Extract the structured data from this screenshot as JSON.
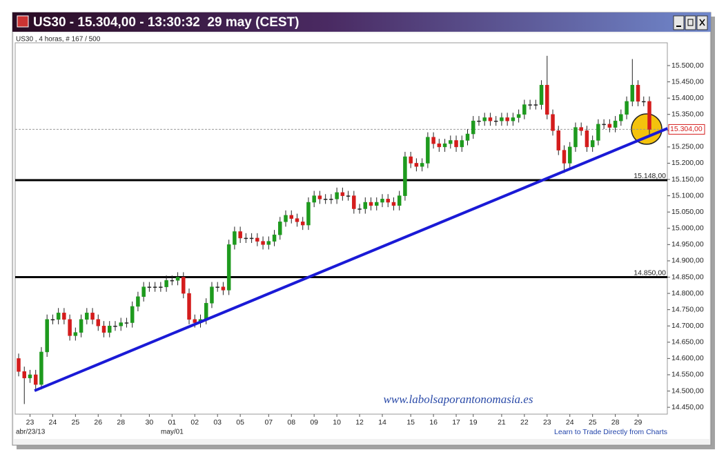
{
  "window_title": "US30 - 15.304,00 - 13:30:32  29 may (CEST)",
  "subtitle": "US30 , 4 horas, # 167 / 500",
  "date_row_labels": [
    "abr/23/13",
    "may/01"
  ],
  "watermark": "www.labolsaporantonomasia.es",
  "footer_link": "Learn to Trade Directly from Charts",
  "chart_data": {
    "type": "candlestick",
    "categories": [
      null,
      null,
      "23",
      null,
      null,
      null,
      "24",
      null,
      null,
      null,
      "25",
      null,
      null,
      null,
      "26",
      null,
      null,
      null,
      "28",
      null,
      null,
      null,
      null,
      "30",
      null,
      null,
      null,
      "01",
      null,
      null,
      null,
      "02",
      null,
      null,
      null,
      "03",
      null,
      null,
      null,
      "05",
      null,
      null,
      null,
      null,
      "07",
      null,
      null,
      null,
      "08",
      null,
      null,
      null,
      "09",
      null,
      null,
      null,
      "10",
      null,
      null,
      null,
      "12",
      null,
      null,
      null,
      "14",
      null,
      null,
      null,
      null,
      "15",
      null,
      null,
      null,
      "16",
      null,
      null,
      null,
      "17",
      null,
      null,
      "19",
      null,
      null,
      null,
      null,
      "21",
      null,
      null,
      null,
      "22",
      null,
      null,
      null,
      "23",
      null,
      null,
      null,
      "24",
      null,
      null,
      null,
      "25",
      null,
      null,
      null,
      "28",
      null,
      null,
      null,
      "29",
      null,
      null
    ],
    "open": [
      14600,
      14560,
      14540,
      14550,
      14520,
      14620,
      14720,
      14720,
      14740,
      14720,
      14670,
      14680,
      14720,
      14740,
      14720,
      14700,
      14680,
      14700,
      14700,
      14710,
      14710,
      14760,
      14790,
      14820,
      14820,
      14820,
      14820,
      14840,
      14840,
      14850,
      14800,
      14720,
      14710,
      14720,
      14770,
      14820,
      14820,
      14810,
      14950,
      14990,
      14970,
      14970,
      14970,
      14960,
      14950,
      14960,
      14980,
      15020,
      15040,
      15030,
      15020,
      15010,
      15080,
      15100,
      15090,
      15090,
      15090,
      15110,
      15100,
      15100,
      15060,
      15060,
      15080,
      15070,
      15080,
      15090,
      15080,
      15070,
      15100,
      15220,
      15200,
      15190,
      15200,
      15280,
      15260,
      15250,
      15260,
      15270,
      15250,
      15270,
      15290,
      15330,
      15330,
      15340,
      15330,
      15330,
      15340,
      15330,
      15340,
      15350,
      15380,
      15380,
      15380,
      15440,
      15350,
      15300,
      15240,
      15200,
      15250,
      15310,
      15300,
      15250,
      15270,
      15320,
      15320,
      15310,
      15330,
      15350,
      15390,
      15440,
      15390,
      15390
    ],
    "high": [
      14615,
      14575,
      14565,
      14565,
      14635,
      14735,
      14735,
      14755,
      14755,
      14735,
      14695,
      14735,
      14755,
      14755,
      14735,
      14715,
      14715,
      14715,
      14725,
      14725,
      14775,
      14805,
      14835,
      14835,
      14835,
      14835,
      14855,
      14855,
      14865,
      14865,
      14815,
      14735,
      14735,
      14785,
      14835,
      14835,
      14835,
      14965,
      15005,
      15005,
      14985,
      14985,
      14985,
      14975,
      14975,
      14995,
      15035,
      15055,
      15055,
      15045,
      15035,
      15095,
      15115,
      15115,
      15105,
      15105,
      15125,
      15125,
      15115,
      15115,
      15075,
      15095,
      15095,
      15095,
      15105,
      15105,
      15095,
      15115,
      15235,
      15235,
      15215,
      15215,
      15295,
      15295,
      15275,
      15275,
      15285,
      15285,
      15285,
      15305,
      15345,
      15345,
      15355,
      15355,
      15345,
      15355,
      15355,
      15355,
      15365,
      15395,
      15395,
      15395,
      15455,
      15530,
      15365,
      15315,
      15255,
      15265,
      15325,
      15325,
      15315,
      15285,
      15335,
      15335,
      15335,
      15345,
      15365,
      15405,
      15520,
      15455,
      15405,
      15405
    ],
    "low": [
      14545,
      14460,
      14525,
      14505,
      14505,
      14605,
      14705,
      14705,
      14705,
      14655,
      14655,
      14665,
      14705,
      14705,
      14685,
      14665,
      14665,
      14685,
      14685,
      14695,
      14695,
      14745,
      14775,
      14805,
      14805,
      14805,
      14805,
      14825,
      14825,
      14785,
      14705,
      14695,
      14695,
      14705,
      14755,
      14805,
      14795,
      14795,
      14935,
      14955,
      14955,
      14955,
      14945,
      14935,
      14935,
      14945,
      14965,
      15005,
      15015,
      15005,
      14995,
      14995,
      15065,
      15075,
      15075,
      15075,
      15075,
      15085,
      15085,
      15045,
      15045,
      15045,
      15055,
      15055,
      15065,
      15065,
      15055,
      15055,
      15085,
      15185,
      15175,
      15175,
      15185,
      15245,
      15235,
      15235,
      15245,
      15235,
      15235,
      15255,
      15275,
      15315,
      15315,
      15315,
      15315,
      15315,
      15315,
      15315,
      15325,
      15335,
      15365,
      15365,
      15365,
      15335,
      15285,
      15225,
      15170,
      15185,
      15235,
      15285,
      15235,
      15235,
      15255,
      15305,
      15295,
      15295,
      15315,
      15335,
      15375,
      15375,
      15375,
      15289
    ],
    "close": [
      14560,
      14540,
      14550,
      14520,
      14620,
      14720,
      14720,
      14740,
      14720,
      14670,
      14680,
      14720,
      14740,
      14720,
      14700,
      14680,
      14700,
      14700,
      14710,
      14710,
      14760,
      14790,
      14820,
      14820,
      14820,
      14820,
      14840,
      14840,
      14850,
      14800,
      14720,
      14710,
      14720,
      14770,
      14820,
      14820,
      14810,
      14950,
      14990,
      14970,
      14970,
      14970,
      14960,
      14950,
      14960,
      14980,
      15020,
      15040,
      15030,
      15020,
      15010,
      15080,
      15100,
      15090,
      15090,
      15090,
      15110,
      15100,
      15100,
      15060,
      15060,
      15080,
      15070,
      15080,
      15090,
      15080,
      15070,
      15100,
      15220,
      15200,
      15190,
      15200,
      15280,
      15260,
      15250,
      15260,
      15270,
      15250,
      15270,
      15290,
      15330,
      15330,
      15340,
      15330,
      15330,
      15340,
      15330,
      15340,
      15350,
      15380,
      15380,
      15380,
      15440,
      15350,
      15300,
      15240,
      15200,
      15250,
      15310,
      15300,
      15250,
      15270,
      15320,
      15320,
      15310,
      15330,
      15350,
      15390,
      15440,
      15390,
      15390,
      15304
    ],
    "up_color": "#1e9a1e",
    "down_color": "#d41c1c",
    "ylim": [
      14429,
      15570
    ],
    "yticks": [
      {
        "value": 14450,
        "label": "14.450,00"
      },
      {
        "value": 14500,
        "label": "14.500,00"
      },
      {
        "value": 14550,
        "label": "14.550,00"
      },
      {
        "value": 14600,
        "label": "14.600,00"
      },
      {
        "value": 14650,
        "label": "14.650,00"
      },
      {
        "value": 14700,
        "label": "14.700,00"
      },
      {
        "value": 14750,
        "label": "14.750,00"
      },
      {
        "value": 14800,
        "label": "14.800,00"
      },
      {
        "value": 14850,
        "label": "14.850,00"
      },
      {
        "value": 14900,
        "label": "14.900,00"
      },
      {
        "value": 14950,
        "label": "14.950,00"
      },
      {
        "value": 15000,
        "label": "15.000,00"
      },
      {
        "value": 15050,
        "label": "15.050,00"
      },
      {
        "value": 15100,
        "label": "15.100,00"
      },
      {
        "value": 15150,
        "label": "15.150,00"
      },
      {
        "value": 15200,
        "label": "15.200,00"
      },
      {
        "value": 15250,
        "label": "15.250,00"
      },
      {
        "value": 15300,
        "label": "15.300,00"
      },
      {
        "value": 15350,
        "label": "15.350,00"
      },
      {
        "value": 15400,
        "label": "15.400,00"
      },
      {
        "value": 15450,
        "label": "15.450,00"
      },
      {
        "value": 15500,
        "label": "15.500,00"
      }
    ],
    "levels": [
      {
        "value": 15148,
        "label": "15.148,00"
      },
      {
        "value": 14850,
        "label": "14.850,00"
      }
    ],
    "level_color": "#000000",
    "current_price": {
      "value": 15304,
      "label": "15.304,00"
    },
    "trendline": {
      "x": [
        2.8,
        114.2
      ],
      "values": [
        14501,
        15307
      ],
      "color": "#1a1ad6"
    }
  }
}
